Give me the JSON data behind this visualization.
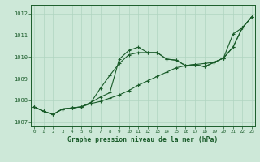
{
  "title": "Graphe pression niveau de la mer (hPa)",
  "xlabel_ticks": [
    0,
    1,
    2,
    3,
    4,
    5,
    6,
    7,
    8,
    9,
    10,
    11,
    12,
    13,
    14,
    15,
    16,
    17,
    18,
    19,
    20,
    21,
    22,
    23
  ],
  "ylim": [
    1006.8,
    1012.4
  ],
  "yticks": [
    1007,
    1008,
    1009,
    1010,
    1011,
    1012
  ],
  "background_color": "#cde8d8",
  "grid_color": "#b0d4c0",
  "line_color": "#1a5c2a",
  "series1": [
    1007.7,
    1007.5,
    1007.35,
    1007.6,
    1007.65,
    1007.7,
    1007.9,
    1008.15,
    1008.35,
    1009.9,
    1010.3,
    1010.45,
    1010.2,
    1010.2,
    1009.9,
    1009.85,
    1009.6,
    1009.65,
    1009.55,
    1009.75,
    1009.95,
    1011.05,
    1011.35,
    1011.85
  ],
  "series2": [
    1007.7,
    1007.5,
    1007.35,
    1007.6,
    1007.65,
    1007.7,
    1007.9,
    1008.55,
    1009.15,
    1009.7,
    1010.1,
    1010.2,
    1010.2,
    1010.2,
    1009.9,
    1009.85,
    1009.6,
    1009.65,
    1009.55,
    1009.75,
    1009.95,
    1010.45,
    1011.35,
    1011.85
  ],
  "series3": [
    1007.7,
    1007.5,
    1007.35,
    1007.6,
    1007.65,
    1007.7,
    1007.85,
    1007.95,
    1008.1,
    1008.25,
    1008.45,
    1008.7,
    1008.9,
    1009.1,
    1009.3,
    1009.5,
    1009.6,
    1009.65,
    1009.7,
    1009.75,
    1009.95,
    1010.45,
    1011.35,
    1011.85
  ]
}
